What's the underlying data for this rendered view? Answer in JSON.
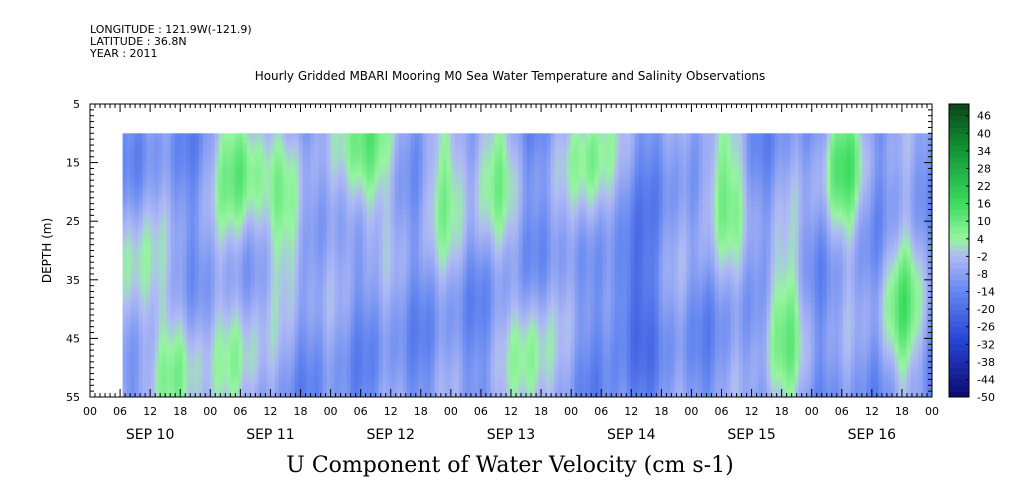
{
  "header": {
    "longitude": "LONGITUDE : 121.9W(-121.9)",
    "latitude": "LATITUDE : 36.8N",
    "year": "YEAR : 2011"
  },
  "chart_data": {
    "type": "heatmap",
    "title": "Hourly Gridded MBARI Mooring M0 Sea Water Temperature and Salinity Observations",
    "xlabel": "U Component of Water Velocity (cm s-1)",
    "ylabel": "DEPTH (m)",
    "y_ticks": [
      "5",
      "15",
      "25",
      "35",
      "45",
      "55"
    ],
    "y_range": [
      5,
      55
    ],
    "y_reversed": true,
    "data_depth_range": [
      10,
      55
    ],
    "x_start_hour": 0,
    "x_end_hour": 168,
    "data_start_hour": 6.5,
    "hour_ticks": [
      "00",
      "06",
      "12",
      "18",
      "00",
      "06",
      "12",
      "18",
      "00",
      "06",
      "12",
      "18",
      "00",
      "06",
      "12",
      "18",
      "00",
      "06",
      "12",
      "18",
      "00",
      "06",
      "12",
      "18",
      "00",
      "06",
      "12",
      "18",
      "00"
    ],
    "date_labels": [
      "SEP 10",
      "SEP 11",
      "SEP 12",
      "SEP 13",
      "SEP 14",
      "SEP 15",
      "SEP 16"
    ],
    "colorbar": {
      "ticks": [
        "46",
        "40",
        "34",
        "28",
        "22",
        "16",
        "10",
        "4",
        "-2",
        "-8",
        "-14",
        "-20",
        "-26",
        "-32",
        "-38",
        "-44",
        "-50"
      ],
      "min": -50,
      "max": 50
    },
    "features": [
      {
        "hour": 9,
        "depth": 35,
        "u": 4
      },
      {
        "hour": 18,
        "depth": 50,
        "u": 6
      },
      {
        "hour": 30,
        "depth": 15,
        "u": 12
      },
      {
        "hour": 30,
        "depth": 50,
        "u": 4
      },
      {
        "hour": 40,
        "depth": 25,
        "u": 6
      },
      {
        "hour": 55,
        "depth": 13,
        "u": 14
      },
      {
        "hour": 70,
        "depth": 18,
        "u": 4
      },
      {
        "hour": 80,
        "depth": 15,
        "u": 6
      },
      {
        "hour": 88,
        "depth": 50,
        "u": 6
      },
      {
        "hour": 100,
        "depth": 15,
        "u": 8
      },
      {
        "hour": 108,
        "depth": 38,
        "u": -22
      },
      {
        "hour": 126,
        "depth": 18,
        "u": 8
      },
      {
        "hour": 138,
        "depth": 42,
        "u": 8
      },
      {
        "hour": 150,
        "depth": 15,
        "u": 10
      },
      {
        "hour": 162,
        "depth": 40,
        "u": 8
      }
    ]
  }
}
